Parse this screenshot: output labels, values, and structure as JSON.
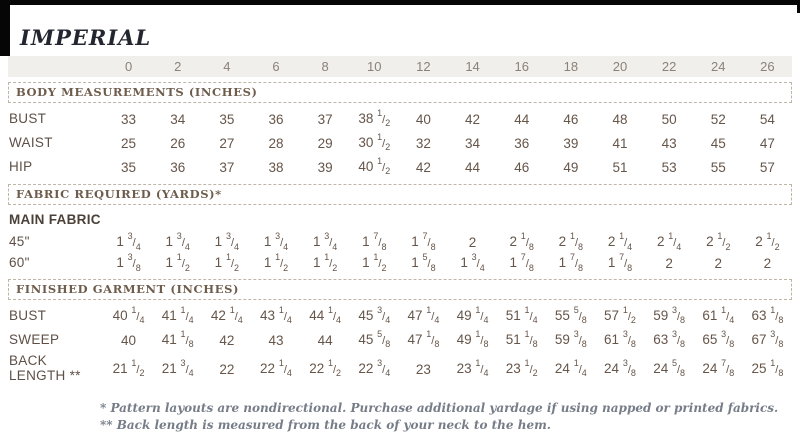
{
  "title": "IMPERIAL",
  "sizes": [
    "0",
    "2",
    "4",
    "6",
    "8",
    "10",
    "12",
    "14",
    "16",
    "18",
    "20",
    "22",
    "24",
    "26"
  ],
  "sections": [
    {
      "id": "body-measurements",
      "heading": "BODY MEASUREMENTS (INCHES)",
      "rows": [
        {
          "label": "BUST",
          "values": [
            "33",
            "34",
            "35",
            "36",
            "37",
            "38 1/2",
            "40",
            "42",
            "44",
            "46",
            "48",
            "50",
            "52",
            "54"
          ]
        },
        {
          "label": "WAIST",
          "values": [
            "25",
            "26",
            "27",
            "28",
            "29",
            "30 1/2",
            "32",
            "34",
            "36",
            "39",
            "41",
            "43",
            "45",
            "47"
          ]
        },
        {
          "label": "HIP",
          "values": [
            "35",
            "36",
            "37",
            "38",
            "39",
            "40 1/2",
            "42",
            "44",
            "46",
            "49",
            "51",
            "53",
            "55",
            "57"
          ]
        }
      ]
    },
    {
      "id": "fabric-required",
      "heading": "FABRIC REQUIRED (YARDS)*",
      "subheading": "MAIN FABRIC",
      "rows": [
        {
          "label": "45\"",
          "values": [
            "1 3/4",
            "1 3/4",
            "1 3/4",
            "1 3/4",
            "1 3/4",
            "1 7/8",
            "1 7/8",
            "2",
            "2 1/8",
            "2 1/8",
            "2 1/4",
            "2 1/4",
            "2 1/2",
            "2 1/2"
          ]
        },
        {
          "label": "60\"",
          "values": [
            "1 3/8",
            "1 1/2",
            "1 1/2",
            "1 1/2",
            "1 1/2",
            "1 1/2",
            "1 5/8",
            "1 3/4",
            "1 7/8",
            "1 7/8",
            "1 7/8",
            "2",
            "2",
            "2"
          ]
        }
      ]
    },
    {
      "id": "finished-garment",
      "heading": "FINISHED GARMENT (INCHES)",
      "rows": [
        {
          "label": "BUST",
          "values": [
            "40 1/4",
            "41 1/4",
            "42 1/4",
            "43 1/4",
            "44 1/4",
            "45 3/4",
            "47 1/4",
            "49 1/4",
            "51 1/4",
            "55 5/8",
            "57 1/2",
            "59 3/8",
            "61 1/4",
            "63 1/8"
          ]
        },
        {
          "label": "SWEEP",
          "values": [
            "40",
            "41 1/8",
            "42",
            "43",
            "44",
            "45 5/8",
            "47 1/8",
            "49 1/8",
            "51 1/8",
            "59 3/8",
            "61 3/8",
            "63 3/8",
            "65 3/8",
            "67 3/8"
          ]
        },
        {
          "label": "BACK LENGTH **",
          "tall": true,
          "values": [
            "21 1/2",
            "21 3/4",
            "22",
            "22 1/4",
            "22 1/2",
            "22 3/4",
            "23",
            "23 1/4",
            "23 1/2",
            "24 1/4",
            "24 3/8",
            "24 5/8",
            "24 7/8",
            "25 1/8"
          ]
        }
      ]
    }
  ],
  "footnotes": [
    "* Pattern layouts are nondirectional. Purchase additional yardage if using napped or printed fabrics.",
    "** Back length is measured from the back of your neck to the hem."
  ],
  "colors": {
    "frame": "#060606",
    "header_band_bg": "#f1efec",
    "size_text": "#8b8177",
    "section_heading_text": "#6e5d4d",
    "data_text": "#665549",
    "title_text": "#23252f",
    "footnote_text": "#767d88",
    "dashed_border": "#bfb6aa"
  }
}
